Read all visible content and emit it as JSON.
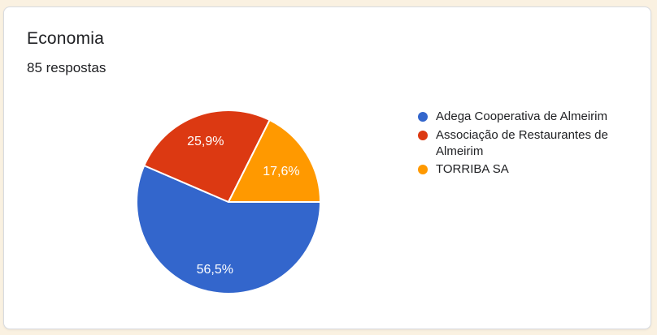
{
  "page": {
    "background_color": "#faf1e1"
  },
  "card": {
    "title": "Economia",
    "responses_label": "85 respostas",
    "background_color": "#ffffff"
  },
  "chart_data": {
    "type": "pie",
    "title": "Economia",
    "subtitle": "85 respostas",
    "total_responses": 85,
    "slices": [
      {
        "label": "Adega Cooperativa de Almeirim",
        "percent": 56.5,
        "percent_label": "56,5%",
        "color": "#3366cc"
      },
      {
        "label": "Associação de Restaurantes de Almeirim",
        "percent": 25.9,
        "percent_label": "25,9%",
        "color": "#dc3912"
      },
      {
        "label": "TORRIBA SA",
        "percent": 17.6,
        "percent_label": "17,6%",
        "color": "#ff9900"
      }
    ],
    "start_angle_deg": 90,
    "direction": "clockwise",
    "legend_position": "right",
    "slice_label_color": "#ffffff",
    "slice_border_color": "#ffffff"
  }
}
